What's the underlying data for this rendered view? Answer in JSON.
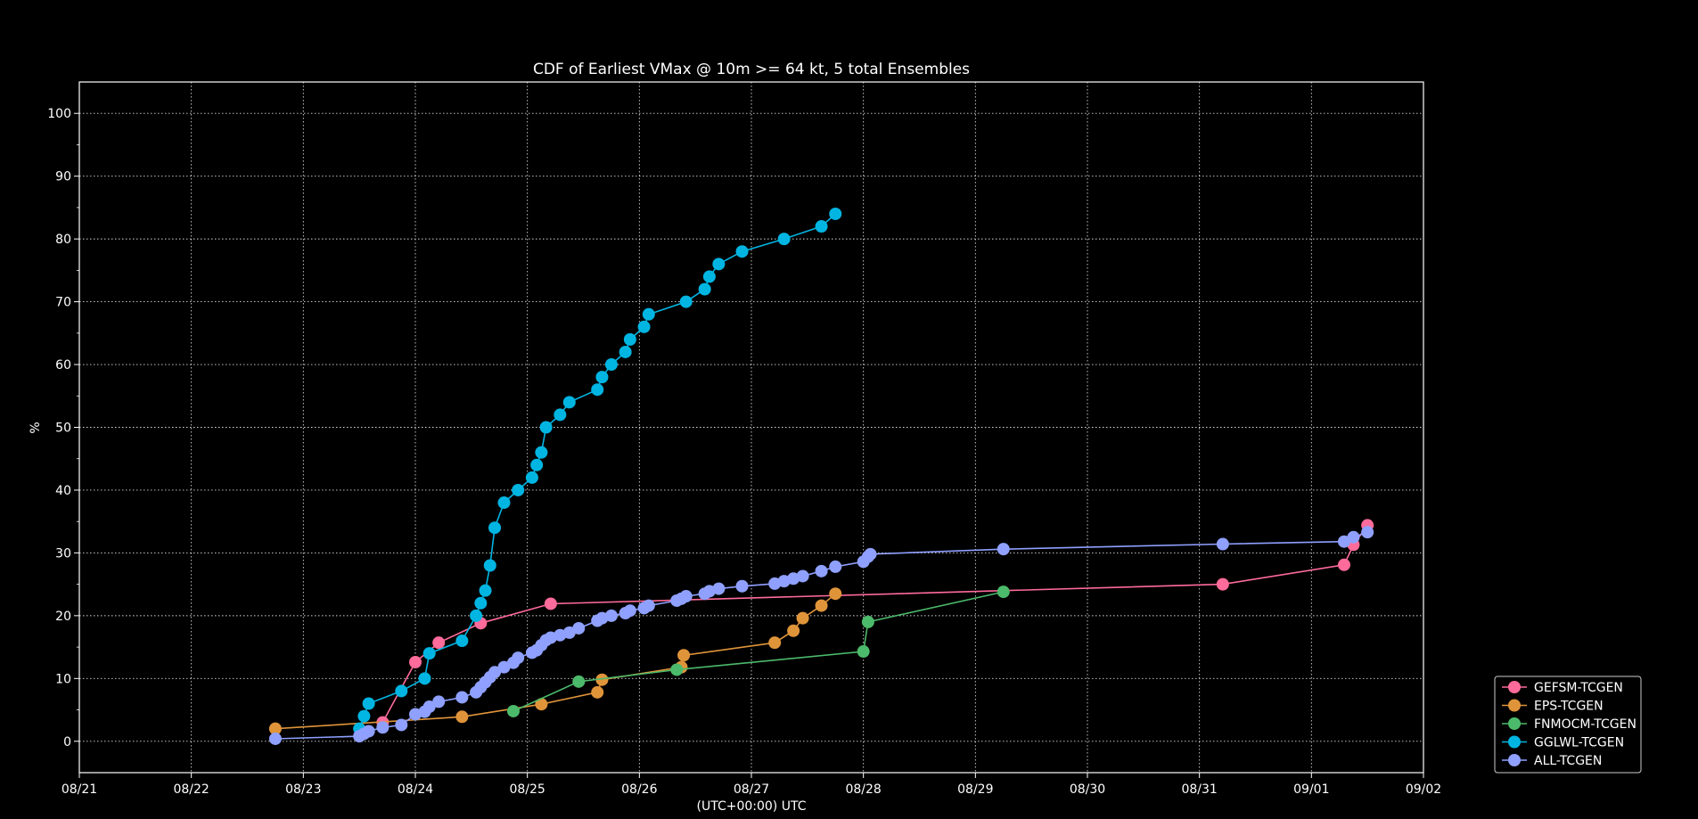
{
  "chart_data": {
    "type": "line",
    "title": "CDF of Earliest VMax @ 10m >= 64 kt, 5 total Ensembles",
    "xlabel": "(UTC+00:00) UTC",
    "ylabel": "%",
    "x_ticks": [
      "08/21",
      "08/22",
      "08/23",
      "08/24",
      "08/25",
      "08/26",
      "08/27",
      "08/28",
      "08/29",
      "08/30",
      "08/31",
      "09/01",
      "09/02"
    ],
    "xlim": [
      "08/21",
      "09/02"
    ],
    "y_ticks": [
      0,
      10,
      20,
      30,
      40,
      50,
      60,
      70,
      80,
      90,
      100
    ],
    "ylim": [
      -5,
      105
    ],
    "grid": true,
    "legend_position": "bottom-right outside",
    "series": [
      {
        "name": "GEFSM-TCGEN",
        "color": "#ff6b9a",
        "points": [
          [
            "08/23 17:00",
            3.0
          ],
          [
            "08/24 00:00",
            12.6
          ],
          [
            "08/24 05:00",
            15.7
          ],
          [
            "08/24 14:00",
            18.8
          ],
          [
            "08/25 05:00",
            21.9
          ],
          [
            "08/31 05:00",
            25.0
          ],
          [
            "09/01 07:00",
            28.1
          ],
          [
            "09/01 09:00",
            31.3
          ],
          [
            "09/01 12:00",
            34.4
          ]
        ]
      },
      {
        "name": "EPS-TCGEN",
        "color": "#e0943a",
        "points": [
          [
            "08/22 18:00",
            2.0
          ],
          [
            "08/24 10:00",
            3.9
          ],
          [
            "08/25 03:00",
            5.9
          ],
          [
            "08/25 15:00",
            7.8
          ],
          [
            "08/25 16:00",
            9.8
          ],
          [
            "08/26 09:00",
            11.8
          ],
          [
            "08/26 09:30",
            13.7
          ],
          [
            "08/27 05:00",
            15.7
          ],
          [
            "08/27 09:00",
            17.6
          ],
          [
            "08/27 11:00",
            19.6
          ],
          [
            "08/27 15:00",
            21.6
          ],
          [
            "08/27 18:00",
            23.5
          ]
        ]
      },
      {
        "name": "FNMOCM-TCGEN",
        "color": "#4cba6b",
        "points": [
          [
            "08/24 21:00",
            4.8
          ],
          [
            "08/25 11:00",
            9.5
          ],
          [
            "08/26 08:00",
            11.4
          ],
          [
            "08/28 00:00",
            14.3
          ],
          [
            "08/28 01:00",
            19.0
          ],
          [
            "08/29 06:00",
            23.8
          ]
        ]
      },
      {
        "name": "GGLWL-TCGEN",
        "color": "#00b5e2",
        "points": [
          [
            "08/23 12:00",
            2.0
          ],
          [
            "08/23 13:00",
            4.0
          ],
          [
            "08/23 14:00",
            6.0
          ],
          [
            "08/23 21:00",
            8.0
          ],
          [
            "08/24 02:00",
            10.0
          ],
          [
            "08/24 03:00",
            14.0
          ],
          [
            "08/24 10:00",
            16.0
          ],
          [
            "08/24 13:00",
            20.0
          ],
          [
            "08/24 14:00",
            22.0
          ],
          [
            "08/24 15:00",
            24.0
          ],
          [
            "08/24 16:00",
            28.0
          ],
          [
            "08/24 17:00",
            34.0
          ],
          [
            "08/24 19:00",
            38.0
          ],
          [
            "08/24 22:00",
            40.0
          ],
          [
            "08/25 01:00",
            42.0
          ],
          [
            "08/25 02:00",
            44.0
          ],
          [
            "08/25 03:00",
            46.0
          ],
          [
            "08/25 04:00",
            50.0
          ],
          [
            "08/25 07:00",
            52.0
          ],
          [
            "08/25 09:00",
            54.0
          ],
          [
            "08/25 15:00",
            56.0
          ],
          [
            "08/25 16:00",
            58.0
          ],
          [
            "08/25 18:00",
            60.0
          ],
          [
            "08/25 21:00",
            62.0
          ],
          [
            "08/25 22:00",
            64.0
          ],
          [
            "08/26 01:00",
            66.0
          ],
          [
            "08/26 02:00",
            68.0
          ],
          [
            "08/26 10:00",
            70.0
          ],
          [
            "08/26 14:00",
            72.0
          ],
          [
            "08/26 15:00",
            74.0
          ],
          [
            "08/26 17:00",
            76.0
          ],
          [
            "08/26 22:00",
            78.0
          ],
          [
            "08/27 07:00",
            80.0
          ],
          [
            "08/27 15:00",
            82.0
          ],
          [
            "08/27 18:00",
            84.0
          ]
        ]
      },
      {
        "name": "ALL-TCGEN",
        "color": "#8fa0ff",
        "points": [
          [
            "08/22 18:00",
            0.4
          ],
          [
            "08/23 12:00",
            0.8
          ],
          [
            "08/23 13:00",
            1.2
          ],
          [
            "08/23 14:00",
            1.6
          ],
          [
            "08/23 17:00",
            2.2
          ],
          [
            "08/23 21:00",
            2.6
          ],
          [
            "08/24 00:00",
            4.3
          ],
          [
            "08/24 02:00",
            4.7
          ],
          [
            "08/24 03:00",
            5.5
          ],
          [
            "08/24 05:00",
            6.3
          ],
          [
            "08/24 10:00",
            7.0
          ],
          [
            "08/24 13:00",
            7.8
          ],
          [
            "08/24 14:00",
            8.6
          ],
          [
            "08/24 15:00",
            9.4
          ],
          [
            "08/24 16:00",
            10.2
          ],
          [
            "08/24 17:00",
            11.0
          ],
          [
            "08/24 19:00",
            11.8
          ],
          [
            "08/24 21:00",
            12.5
          ],
          [
            "08/24 22:00",
            13.3
          ],
          [
            "08/25 01:00",
            14.1
          ],
          [
            "08/25 02:00",
            14.5
          ],
          [
            "08/25 03:00",
            15.3
          ],
          [
            "08/25 04:00",
            16.1
          ],
          [
            "08/25 05:00",
            16.5
          ],
          [
            "08/25 07:00",
            16.9
          ],
          [
            "08/25 09:00",
            17.3
          ],
          [
            "08/25 11:00",
            18.0
          ],
          [
            "08/25 15:00",
            19.2
          ],
          [
            "08/25 16:00",
            19.6
          ],
          [
            "08/25 18:00",
            20.0
          ],
          [
            "08/25 21:00",
            20.4
          ],
          [
            "08/25 22:00",
            20.8
          ],
          [
            "08/26 01:00",
            21.2
          ],
          [
            "08/26 02:00",
            21.6
          ],
          [
            "08/26 08:00",
            22.4
          ],
          [
            "08/26 09:00",
            22.7
          ],
          [
            "08/26 10:00",
            23.1
          ],
          [
            "08/26 14:00",
            23.5
          ],
          [
            "08/26 15:00",
            23.9
          ],
          [
            "08/26 17:00",
            24.3
          ],
          [
            "08/26 22:00",
            24.7
          ],
          [
            "08/27 05:00",
            25.1
          ],
          [
            "08/27 07:00",
            25.5
          ],
          [
            "08/27 09:00",
            25.9
          ],
          [
            "08/27 11:00",
            26.3
          ],
          [
            "08/27 15:00",
            27.1
          ],
          [
            "08/27 18:00",
            27.8
          ],
          [
            "08/28 00:00",
            28.6
          ],
          [
            "08/28 01:00",
            29.4
          ],
          [
            "08/28 01:30",
            29.8
          ],
          [
            "08/29 06:00",
            30.6
          ],
          [
            "08/31 05:00",
            31.4
          ],
          [
            "09/01 07:00",
            31.8
          ],
          [
            "09/01 09:00",
            32.5
          ],
          [
            "09/01 12:00",
            33.3
          ]
        ]
      }
    ]
  }
}
